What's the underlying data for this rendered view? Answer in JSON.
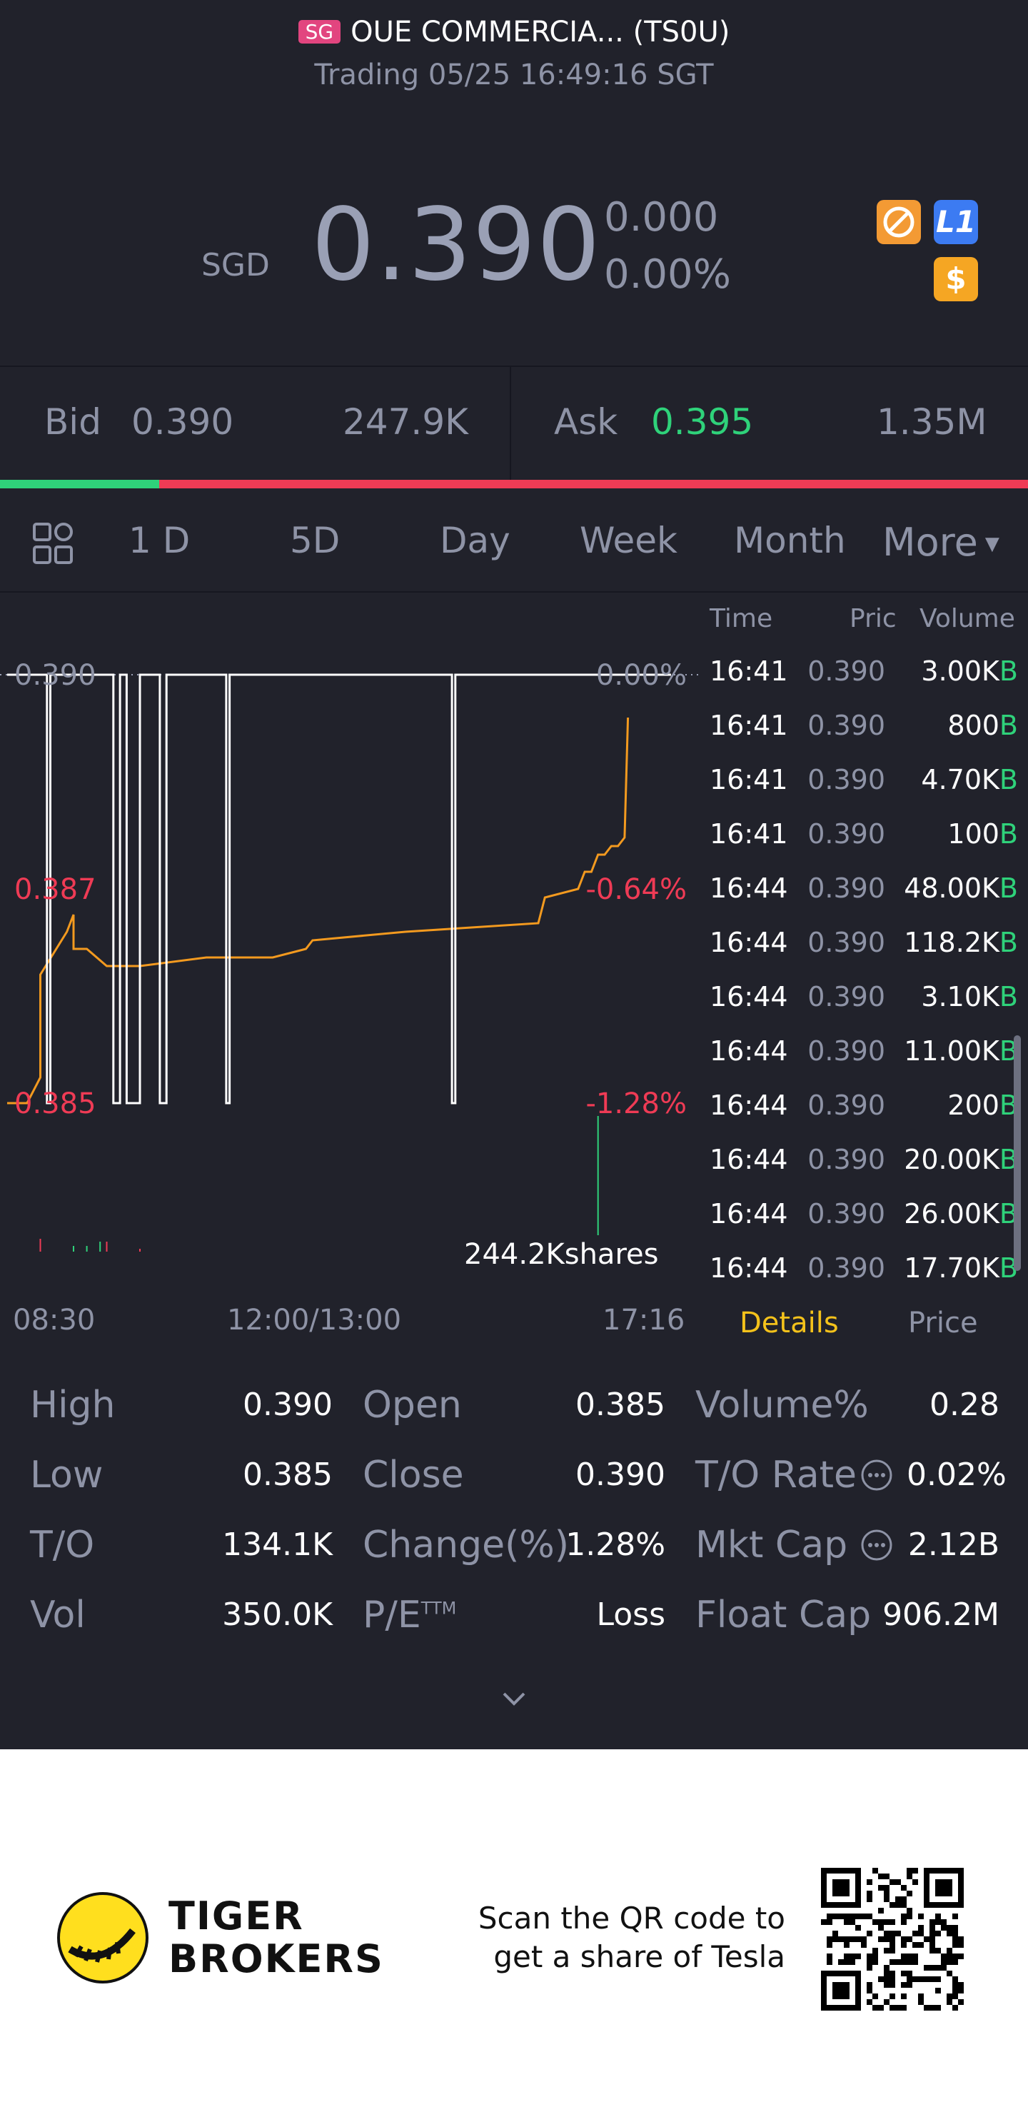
{
  "header": {
    "market_badge": "SG",
    "title": "OUE COMMERCIA... (TS0U)",
    "status": "Trading 05/25 16:49:16 SGT"
  },
  "quote": {
    "currency": "SGD",
    "price": "0.390",
    "change": "0.000",
    "change_pct": "0.00%",
    "level_badge": "L1",
    "dollar_badge": "$"
  },
  "bidask": {
    "bid_label": "Bid",
    "bid_price": "0.390",
    "bid_size": "247.9K",
    "ask_label": "Ask",
    "ask_price": "0.395",
    "ask_size": "1.35M",
    "bid_ratio": 0.155
  },
  "periods": {
    "tabs": [
      "1 D",
      "5D",
      "Day",
      "Week",
      "Month"
    ],
    "more": "More",
    "active": "1 D"
  },
  "chart": {
    "y_labels": {
      "top": "0.390",
      "mid": "0.387",
      "bottom": "0.385"
    },
    "pct_labels": {
      "top": "0.00%",
      "mid": "-0.64%",
      "bottom": "-1.28%"
    },
    "volume_label": "244.2Kshares",
    "time_labels": [
      "08:30",
      "12:00/13:00",
      "17:16"
    ]
  },
  "chart_data": {
    "type": "line",
    "series": [
      {
        "x": [
          0.0,
          0.03,
          0.05,
          0.05,
          0.09,
          0.1,
          0.1,
          0.12,
          0.15,
          0.15,
          0.2,
          0.3,
          0.4,
          0.45,
          0.46,
          0.6,
          0.8,
          0.81,
          0.86,
          0.87,
          0.88,
          0.89,
          0.9,
          0.91,
          0.92,
          0.93,
          0.935
        ],
        "values": [
          0.385,
          0.385,
          0.3853,
          0.3865,
          0.387,
          0.3872,
          0.3868,
          0.3868,
          0.3866,
          0.3866,
          0.3866,
          0.3867,
          0.3867,
          0.3868,
          0.3869,
          0.387,
          0.3871,
          0.3874,
          0.3875,
          0.3877,
          0.3877,
          0.3879,
          0.3879,
          0.388,
          0.388,
          0.3881,
          0.3895
        ]
      },
      {
        "x": [
          0.0,
          0.06,
          0.06,
          0.065,
          0.065,
          0.16,
          0.16,
          0.17,
          0.17,
          0.18,
          0.18,
          0.2,
          0.2,
          0.23,
          0.23,
          0.24,
          0.24,
          0.33,
          0.33,
          0.335,
          0.335,
          0.67,
          0.67,
          0.675,
          0.675,
          1.0
        ],
        "values": [
          0.39,
          0.39,
          0.385,
          0.385,
          0.39,
          0.39,
          0.385,
          0.385,
          0.39,
          0.39,
          0.385,
          0.385,
          0.39,
          0.39,
          0.385,
          0.385,
          0.39,
          0.39,
          0.385,
          0.385,
          0.39,
          0.39,
          0.385,
          0.385,
          0.39,
          0.39
        ]
      }
    ],
    "ylim": [
      0.384,
      0.391
    ],
    "colors": {
      "avg_line": "#f39a1f",
      "price_line": "#ffffff"
    }
  },
  "trades": {
    "headers": [
      "Time",
      "Pric",
      "Volume"
    ],
    "rows": [
      {
        "time": "16:41",
        "price": "0.390",
        "volume": "3.00K",
        "side": "B"
      },
      {
        "time": "16:41",
        "price": "0.390",
        "volume": "800",
        "side": "B"
      },
      {
        "time": "16:41",
        "price": "0.390",
        "volume": "4.70K",
        "side": "B"
      },
      {
        "time": "16:41",
        "price": "0.390",
        "volume": "100",
        "side": "B"
      },
      {
        "time": "16:44",
        "price": "0.390",
        "volume": "48.00K",
        "side": "B"
      },
      {
        "time": "16:44",
        "price": "0.390",
        "volume": "118.2K",
        "side": "B"
      },
      {
        "time": "16:44",
        "price": "0.390",
        "volume": "3.10K",
        "side": "B"
      },
      {
        "time": "16:44",
        "price": "0.390",
        "volume": "11.00K",
        "side": "B"
      },
      {
        "time": "16:44",
        "price": "0.390",
        "volume": "200",
        "side": "B"
      },
      {
        "time": "16:44",
        "price": "0.390",
        "volume": "20.00K",
        "side": "B"
      },
      {
        "time": "16:44",
        "price": "0.390",
        "volume": "26.00K",
        "side": "B"
      },
      {
        "time": "16:44",
        "price": "0.390",
        "volume": "17.70K",
        "side": "B"
      }
    ],
    "tab_details": "Details",
    "tab_price": "Price"
  },
  "stats": {
    "high_label": "High",
    "high": "0.390",
    "low_label": "Low",
    "low": "0.385",
    "to_label": "T/O",
    "to": "134.1K",
    "vol_label": "Vol",
    "vol": "350.0K",
    "open_label": "Open",
    "open": "0.385",
    "close_label": "Close",
    "close": "0.390",
    "change_label": "Change(%)",
    "change": "1.28%",
    "pe_label": "P/E",
    "pe_sup": "TTM",
    "pe": "Loss",
    "volpct_label": "Volume%",
    "volpct": "0.28",
    "torate_label": "T/O Rate",
    "torate": "0.02%",
    "mktcap_label": "Mkt Cap",
    "mktcap": "2.12B",
    "floatcap_label": "Float Cap",
    "floatcap": "906.2M"
  },
  "footer": {
    "brand_line1": "TIGER",
    "brand_line2": "BROKERS",
    "promo_line1": "Scan the QR code to",
    "promo_line2": "get a share of Tesla"
  }
}
